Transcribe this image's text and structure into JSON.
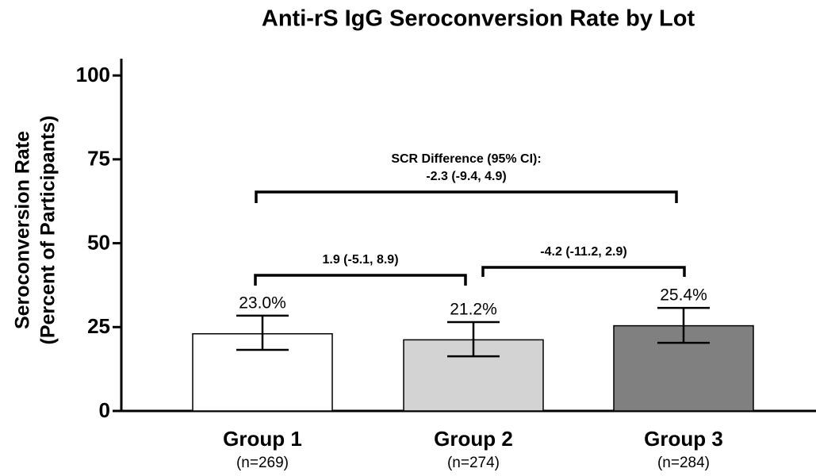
{
  "chart_data": {
    "type": "bar",
    "title": "Anti-rS IgG Seroconversion Rate by Lot",
    "y_label": [
      "Seroconversion Rate",
      "(Percent of Participants)"
    ],
    "categories": [
      "Group 1",
      "Group 2",
      "Group 3"
    ],
    "category_subtitles": [
      "(n=269)",
      "(n=274)",
      "(n=284)"
    ],
    "values": [
      23.0,
      21.2,
      25.4
    ],
    "value_labels": [
      "23.0%",
      "21.2%",
      "25.4%"
    ],
    "ci_lower": [
      18.2,
      16.3,
      20.3
    ],
    "ci_upper": [
      28.4,
      26.5,
      30.7
    ],
    "colors": [
      "#ffffff",
      "#d3d3d3",
      "#808080"
    ],
    "ylim": [
      0,
      105
    ],
    "yticks": [
      0,
      25,
      50,
      75,
      100
    ],
    "grid": false,
    "annotations": [
      [
        "SCR Difference (95% CI):",
        "-2.3 (-9.4, 4.9)"
      ],
      [
        "1.9 (-5.1, 8.9)"
      ],
      [
        "-4.2 (-11.2, 2.9)"
      ]
    ]
  }
}
